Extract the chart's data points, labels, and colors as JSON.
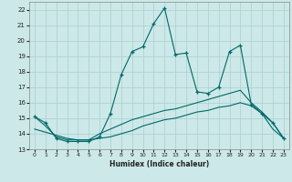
{
  "xlabel": "Humidex (Indice chaleur)",
  "bg_color": "#cce8e8",
  "grid_color": "#aacfcf",
  "line_color": "#006868",
  "xlim": [
    -0.5,
    23.5
  ],
  "ylim": [
    13,
    22.5
  ],
  "yticks": [
    13,
    14,
    15,
    16,
    17,
    18,
    19,
    20,
    21,
    22
  ],
  "xticks": [
    0,
    1,
    2,
    3,
    4,
    5,
    6,
    7,
    8,
    9,
    10,
    11,
    12,
    13,
    14,
    15,
    16,
    17,
    18,
    19,
    20,
    21,
    22,
    23
  ],
  "line1_x": [
    0,
    1,
    2,
    3,
    4,
    5,
    6,
    7,
    8,
    9,
    10,
    11,
    12,
    13,
    14,
    15,
    16,
    17,
    18,
    19,
    20,
    21,
    22,
    23
  ],
  "line1_y": [
    15.1,
    14.7,
    13.7,
    13.5,
    13.5,
    13.5,
    13.8,
    15.3,
    17.8,
    19.3,
    19.6,
    21.1,
    22.1,
    19.1,
    19.2,
    16.7,
    16.6,
    17.0,
    19.3,
    19.7,
    15.9,
    15.3,
    14.7,
    13.7
  ],
  "line2_x": [
    0,
    1,
    2,
    3,
    4,
    5,
    6,
    7,
    8,
    9,
    10,
    11,
    12,
    13,
    14,
    15,
    16,
    17,
    18,
    19,
    20,
    21,
    22,
    23
  ],
  "line2_y": [
    14.3,
    14.1,
    13.9,
    13.7,
    13.6,
    13.6,
    13.7,
    13.8,
    14.0,
    14.2,
    14.5,
    14.7,
    14.9,
    15.0,
    15.2,
    15.4,
    15.5,
    15.7,
    15.8,
    16.0,
    15.8,
    15.3,
    14.3,
    13.7
  ],
  "line3_x": [
    0,
    1,
    2,
    3,
    4,
    5,
    6,
    7,
    8,
    9,
    10,
    11,
    12,
    13,
    14,
    15,
    16,
    17,
    18,
    19,
    20,
    21,
    22,
    23
  ],
  "line3_y": [
    15.1,
    14.5,
    13.8,
    13.6,
    13.6,
    13.6,
    14.0,
    14.3,
    14.6,
    14.9,
    15.1,
    15.3,
    15.5,
    15.6,
    15.8,
    16.0,
    16.2,
    16.4,
    16.6,
    16.8,
    16.0,
    15.4,
    14.7,
    13.7
  ]
}
